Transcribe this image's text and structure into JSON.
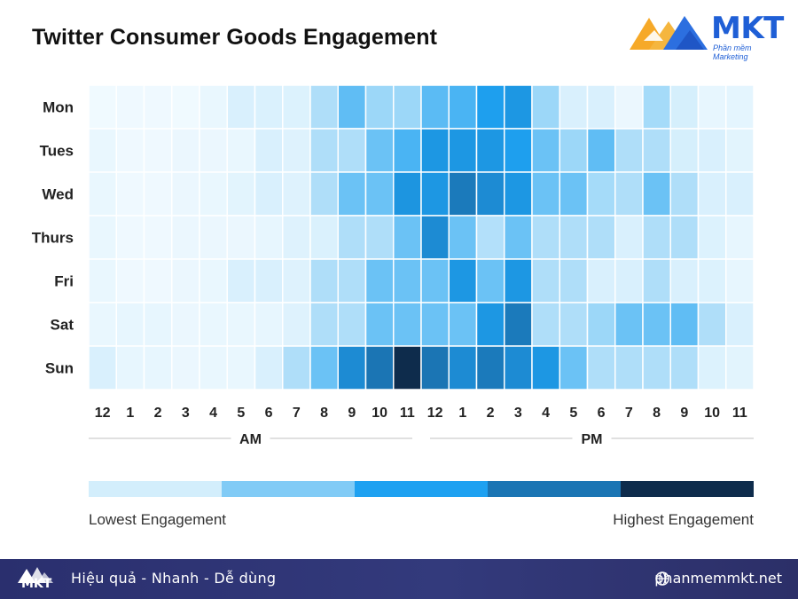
{
  "header": {
    "title": "Twitter Consumer Goods Engagement",
    "brand": "MKT",
    "brand_sub": "Phần mềm Marketing"
  },
  "chart_data": {
    "type": "heatmap",
    "title": "Twitter Consumer Goods Engagement",
    "rows": [
      "Mon",
      "Tues",
      "Wed",
      "Thurs",
      "Fri",
      "Sat",
      "Sun"
    ],
    "columns": [
      "12",
      "1",
      "2",
      "3",
      "4",
      "5",
      "6",
      "7",
      "8",
      "9",
      "10",
      "11",
      "12",
      "1",
      "2",
      "3",
      "4",
      "5",
      "6",
      "7",
      "8",
      "9",
      "10",
      "11"
    ],
    "period_labels": [
      "AM",
      "PM"
    ],
    "scale": [
      "#d3eefc",
      "#81cbf6",
      "#1ea1f1",
      "#1b75b4",
      "#0e2c4c"
    ],
    "scale_min": 0,
    "scale_max": 9,
    "values": [
      [
        0.2,
        0.3,
        0.3,
        0.2,
        0.6,
        1.5,
        1.4,
        1.3,
        2.6,
        4.2,
        3.0,
        3.0,
        4.3,
        4.6,
        5.5,
        5.8,
        3.0,
        1.5,
        1.5,
        0.5,
        2.8,
        1.7,
        0.7,
        0.9
      ],
      [
        0.6,
        0.3,
        0.3,
        0.5,
        0.5,
        0.6,
        1.5,
        1.2,
        2.6,
        2.6,
        4.0,
        4.6,
        5.8,
        5.8,
        5.8,
        5.5,
        4.0,
        3.0,
        4.2,
        2.6,
        2.6,
        1.7,
        1.5,
        1.0
      ],
      [
        0.6,
        0.3,
        0.3,
        0.5,
        0.6,
        1.0,
        1.5,
        1.2,
        2.6,
        4.0,
        4.0,
        5.9,
        5.8,
        7.0,
        6.3,
        5.8,
        4.0,
        4.0,
        2.8,
        2.6,
        4.0,
        2.6,
        1.5,
        1.5
      ],
      [
        0.6,
        0.3,
        0.3,
        0.5,
        0.5,
        0.5,
        0.7,
        1.2,
        1.4,
        2.6,
        2.6,
        4.0,
        6.3,
        4.0,
        2.5,
        4.0,
        2.6,
        2.6,
        2.6,
        1.5,
        2.6,
        2.6,
        1.3,
        0.7
      ],
      [
        0.6,
        0.3,
        0.3,
        0.5,
        0.6,
        1.5,
        1.5,
        1.2,
        2.6,
        2.6,
        4.0,
        4.0,
        4.0,
        5.8,
        4.0,
        5.8,
        2.6,
        2.6,
        1.5,
        1.5,
        2.6,
        1.5,
        1.3,
        0.7
      ],
      [
        0.6,
        0.7,
        0.7,
        0.5,
        0.6,
        0.6,
        0.7,
        1.2,
        2.6,
        2.6,
        4.0,
        4.0,
        4.0,
        4.0,
        5.8,
        7.0,
        2.6,
        2.6,
        3.0,
        4.0,
        4.0,
        4.2,
        2.6,
        1.5
      ],
      [
        1.5,
        0.7,
        0.7,
        0.5,
        0.6,
        0.6,
        1.5,
        2.6,
        4.0,
        6.3,
        7.2,
        9.0,
        7.2,
        6.3,
        7.0,
        6.3,
        5.8,
        4.0,
        2.6,
        2.6,
        2.6,
        2.6,
        1.3,
        1.0
      ]
    ],
    "legend": {
      "low_label": "Lowest Engagement",
      "high_label": "Highest Engagement"
    }
  },
  "footer": {
    "brand": "MKT",
    "slogan": "Hiệu quả - Nhanh  - Dễ dùng",
    "website": "phanmemmkt.net"
  }
}
